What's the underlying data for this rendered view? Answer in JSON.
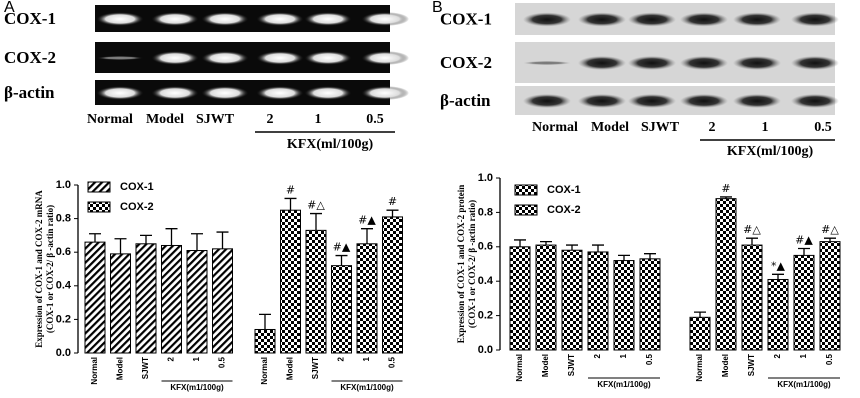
{
  "chart_data": [
    {
      "type": "bar",
      "panel_label": "A",
      "blot": {
        "row_labels": [
          "COX-1",
          "COX-2",
          "β-actin"
        ],
        "lane_labels": [
          "Normal",
          "Model",
          "SJWT",
          "2",
          "1",
          "0.5"
        ],
        "group_label": "KFX(ml/100g)"
      },
      "y_label": [
        "Expression of COX-1 and COX-2 mRNA",
        "(COX-1 or COX-2/ β -actin ratio)"
      ],
      "categories": [
        "Normal",
        "Model",
        "SJWT",
        "2",
        "1",
        "0.5"
      ],
      "group_label": "KFX(m1/100g)",
      "ylim": [
        0,
        1
      ],
      "yticks": [
        {
          "value": 0,
          "label": "0.0"
        },
        0.2,
        0.4,
        0.6,
        0.8,
        {
          "value": 1,
          "label": "1.0"
        }
      ],
      "series": [
        {
          "name": "COX-1",
          "color": "#000000",
          "pattern": "diagonal",
          "values": [
            0.66,
            0.59,
            0.65,
            0.64,
            0.61,
            0.62
          ],
          "errors": [
            0.05,
            0.09,
            0.05,
            0.1,
            0.1,
            0.1
          ],
          "annotations": [
            null,
            null,
            null,
            null,
            null,
            null
          ]
        },
        {
          "name": "COX-2",
          "color": "#000000",
          "pattern": "checker",
          "values": [
            0.14,
            0.85,
            0.73,
            0.52,
            0.65,
            0.81
          ],
          "errors": [
            0.09,
            0.07,
            0.1,
            0.06,
            0.09,
            0.04
          ],
          "annotations": [
            null,
            "#",
            "#△",
            "#▲",
            "#▲",
            "#"
          ]
        }
      ]
    },
    {
      "type": "bar",
      "panel_label": "B",
      "blot": {
        "row_labels": [
          "COX-1",
          "COX-2",
          "β-actin"
        ],
        "lane_labels": [
          "Normal",
          "Model",
          "SJWT",
          "2",
          "1",
          "0.5"
        ],
        "group_label": "KFX(ml/100g)"
      },
      "y_label": [
        "Expression of COX-1 and COX-2  protein",
        "(COX-1 or COX-2/ β -actin ratio)"
      ],
      "categories": [
        "Normal",
        "Model",
        "SJWT",
        "2",
        "1",
        "0.5"
      ],
      "group_label": "KFX(m1/100g)",
      "ylim": [
        0,
        1
      ],
      "yticks": [
        {
          "value": 0,
          "label": "0.0"
        },
        0.2,
        0.4,
        0.6,
        0.8,
        {
          "value": 1,
          "label": "1.0"
        }
      ],
      "series": [
        {
          "name": "COX-1",
          "color": "#000000",
          "pattern": "checker",
          "values": [
            0.6,
            0.61,
            0.58,
            0.57,
            0.52,
            0.53
          ],
          "errors": [
            0.04,
            0.02,
            0.03,
            0.04,
            0.03,
            0.03
          ],
          "annotations": [
            null,
            null,
            null,
            null,
            null,
            null
          ]
        },
        {
          "name": "COX-2",
          "color": "#000000",
          "pattern": "checker",
          "values": [
            0.19,
            0.88,
            0.61,
            0.41,
            0.55,
            0.63
          ],
          "errors": [
            0.03,
            0.01,
            0.04,
            0.03,
            0.04,
            0.02
          ],
          "annotations": [
            null,
            "#",
            "#△",
            "*▲",
            "#▲",
            "#△"
          ]
        }
      ]
    }
  ]
}
